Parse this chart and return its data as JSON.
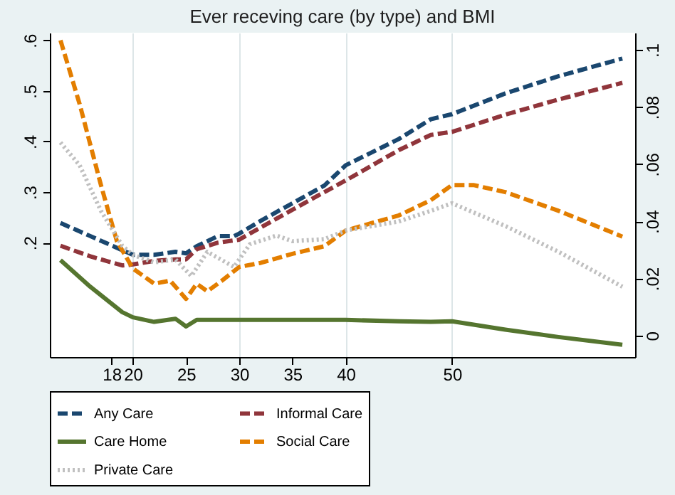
{
  "chart_data": {
    "type": "line",
    "title": "Ever receving care (by type) and BMI",
    "xlim": [
      12.2,
      67.2
    ],
    "xticks": [
      18,
      20,
      25,
      30,
      35,
      40,
      50
    ],
    "ylim": [
      -0.026,
      0.615
    ],
    "yticks": [
      {
        "value": 0.2,
        "label": ".2"
      },
      {
        "value": 0.3,
        "label": ".3"
      },
      {
        "value": 0.4,
        "label": ".4"
      },
      {
        "value": 0.5,
        "label": ".5"
      },
      {
        "value": 0.6,
        "label": ".6"
      }
    ],
    "y2lim": [
      -0.0075,
      0.106
    ],
    "y2ticks": [
      {
        "value": 0,
        "label": "0"
      },
      {
        "value": 0.02,
        "label": ".02"
      },
      {
        "value": 0.04,
        "label": ".04"
      },
      {
        "value": 0.06,
        "label": ".06"
      },
      {
        "value": 0.08,
        "label": ".08"
      },
      {
        "value": 0.1,
        "label": ".1"
      }
    ],
    "grid": "x",
    "legend": "bottom",
    "series": [
      {
        "name": "Any Care",
        "color": "#1a476f",
        "line_style": "dashed",
        "x": [
          13.2,
          20,
          22,
          24,
          25,
          26,
          28,
          29.5,
          30,
          32,
          35,
          38,
          40,
          45,
          48,
          50,
          55,
          60,
          66
        ],
        "values": [
          0.239,
          0.176,
          0.176,
          0.182,
          0.179,
          0.193,
          0.213,
          0.213,
          0.218,
          0.243,
          0.278,
          0.313,
          0.353,
          0.405,
          0.444,
          0.454,
          0.495,
          0.529,
          0.564
        ]
      },
      {
        "name": "Informal Care",
        "color": "#90353b",
        "line_style": "dashed",
        "x": [
          13.2,
          16,
          19,
          20,
          22,
          24,
          25,
          26,
          28,
          30,
          32,
          35,
          38,
          40,
          45,
          48,
          50,
          55,
          60,
          66
        ],
        "values": [
          0.194,
          0.173,
          0.155,
          0.157,
          0.164,
          0.167,
          0.167,
          0.187,
          0.2,
          0.206,
          0.23,
          0.265,
          0.3,
          0.323,
          0.383,
          0.413,
          0.419,
          0.453,
          0.483,
          0.516
        ]
      },
      {
        "name": "Care Home",
        "color": "#55752f",
        "line_style": "solid",
        "axis": "y2",
        "x": [
          13.2,
          16,
          19,
          20,
          22,
          24,
          25,
          26,
          30,
          35,
          40,
          45,
          48,
          50,
          55,
          60,
          66
        ],
        "values": [
          0.0264,
          0.0171,
          0.0082,
          0.0064,
          0.0048,
          0.0059,
          0.0032,
          0.0055,
          0.0055,
          0.0055,
          0.0055,
          0.005,
          0.0048,
          0.005,
          0.0021,
          -0.0005,
          -0.0032
        ]
      },
      {
        "name": "Social Care",
        "color": "#e37e00",
        "line_style": "dashed",
        "x": [
          13.2,
          15,
          17,
          18.5,
          20,
          22,
          23.5,
          25,
          26,
          27,
          28.5,
          30,
          32,
          35,
          38,
          40,
          45,
          48,
          50,
          52,
          55,
          60,
          66
        ],
        "values": [
          0.6,
          0.474,
          0.314,
          0.203,
          0.149,
          0.119,
          0.125,
          0.089,
          0.119,
          0.104,
          0.127,
          0.152,
          0.16,
          0.178,
          0.193,
          0.224,
          0.254,
          0.284,
          0.314,
          0.314,
          0.3,
          0.263,
          0.212
        ]
      },
      {
        "name": "Private Care",
        "color": "#c0c0c0",
        "line_style": "dotted",
        "x": [
          13.2,
          15,
          17,
          19,
          20,
          22,
          24,
          25.5,
          27,
          29.5,
          31,
          33.5,
          35,
          38,
          40,
          45,
          48,
          50,
          55,
          60,
          66
        ],
        "values": [
          0.398,
          0.353,
          0.263,
          0.194,
          0.176,
          0.161,
          0.167,
          0.134,
          0.182,
          0.152,
          0.197,
          0.214,
          0.203,
          0.207,
          0.224,
          0.242,
          0.263,
          0.278,
          0.233,
          0.182,
          0.113
        ]
      }
    ]
  }
}
